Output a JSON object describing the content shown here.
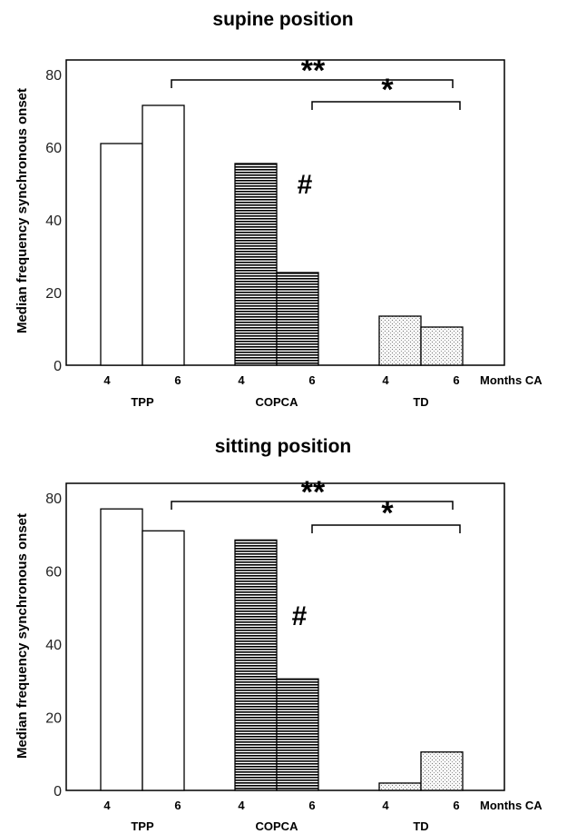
{
  "chart_data": [
    {
      "type": "bar",
      "title": "supine position",
      "ylabel": "Median frequency synchronous onset",
      "xlabel": "Months CA",
      "ylim": [
        0,
        84
      ],
      "yticks": [
        "0",
        "20",
        "40",
        "60",
        "80"
      ],
      "groups": [
        {
          "name": "TPP",
          "ages": [
            "4",
            "6"
          ],
          "values": [
            61,
            71.5
          ],
          "fill": "white"
        },
        {
          "name": "COPCA",
          "ages": [
            "4",
            "6"
          ],
          "values": [
            55.5,
            25.5
          ],
          "fill": "horizontal-lines"
        },
        {
          "name": "TD",
          "ages": [
            "4",
            "6"
          ],
          "values": [
            13.5,
            10.5
          ],
          "fill": "dots"
        }
      ],
      "annotations": {
        "double_star": "**",
        "single_star": "*",
        "hash": "#"
      },
      "grid": false
    },
    {
      "type": "bar",
      "title": "sitting position",
      "ylabel": "Median frequency synchronous onset",
      "xlabel": "Months CA",
      "ylim": [
        0,
        84
      ],
      "yticks": [
        "0",
        "20",
        "40",
        "60",
        "80"
      ],
      "groups": [
        {
          "name": "TPP",
          "ages": [
            "4",
            "6"
          ],
          "values": [
            77,
            71
          ],
          "fill": "white"
        },
        {
          "name": "COPCA",
          "ages": [
            "4",
            "6"
          ],
          "values": [
            68.5,
            30.5
          ],
          "fill": "horizontal-lines"
        },
        {
          "name": "TD",
          "ages": [
            "4",
            "6"
          ],
          "values": [
            2,
            10.5
          ],
          "fill": "dots"
        }
      ],
      "annotations": {
        "double_star": "**",
        "single_star": "*",
        "hash": "#"
      },
      "grid": false
    }
  ]
}
